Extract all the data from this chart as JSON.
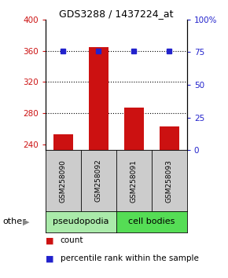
{
  "title": "GDS3288 / 1437224_at",
  "samples": [
    "GSM258090",
    "GSM258092",
    "GSM258091",
    "GSM258093"
  ],
  "bar_values": [
    253,
    365,
    287,
    263
  ],
  "percentile_values": [
    76,
    76,
    76,
    76
  ],
  "ylim_left": [
    233,
    400
  ],
  "ylim_right": [
    0,
    100
  ],
  "yticks_left": [
    240,
    280,
    320,
    360,
    400
  ],
  "yticks_right": [
    0,
    25,
    50,
    75,
    100
  ],
  "ytick_labels_right": [
    "0",
    "25",
    "50",
    "75",
    "100%"
  ],
  "bar_color": "#cc1111",
  "dot_color": "#2222cc",
  "bar_bottom": 233,
  "dotted_lines": [
    280,
    320,
    360
  ],
  "groups": [
    {
      "label": "pseudopodia",
      "color": "#aaeaaa",
      "indices": [
        0,
        1
      ]
    },
    {
      "label": "cell bodies",
      "color": "#55dd55",
      "indices": [
        2,
        3
      ]
    }
  ],
  "other_label": "other",
  "legend_count_label": "count",
  "legend_pct_label": "percentile rank within the sample",
  "sample_box_color": "#cccccc",
  "title_fontsize": 9,
  "axis_fontsize": 7.5,
  "sample_fontsize": 6.5,
  "group_fontsize": 8,
  "legend_fontsize": 7.5
}
